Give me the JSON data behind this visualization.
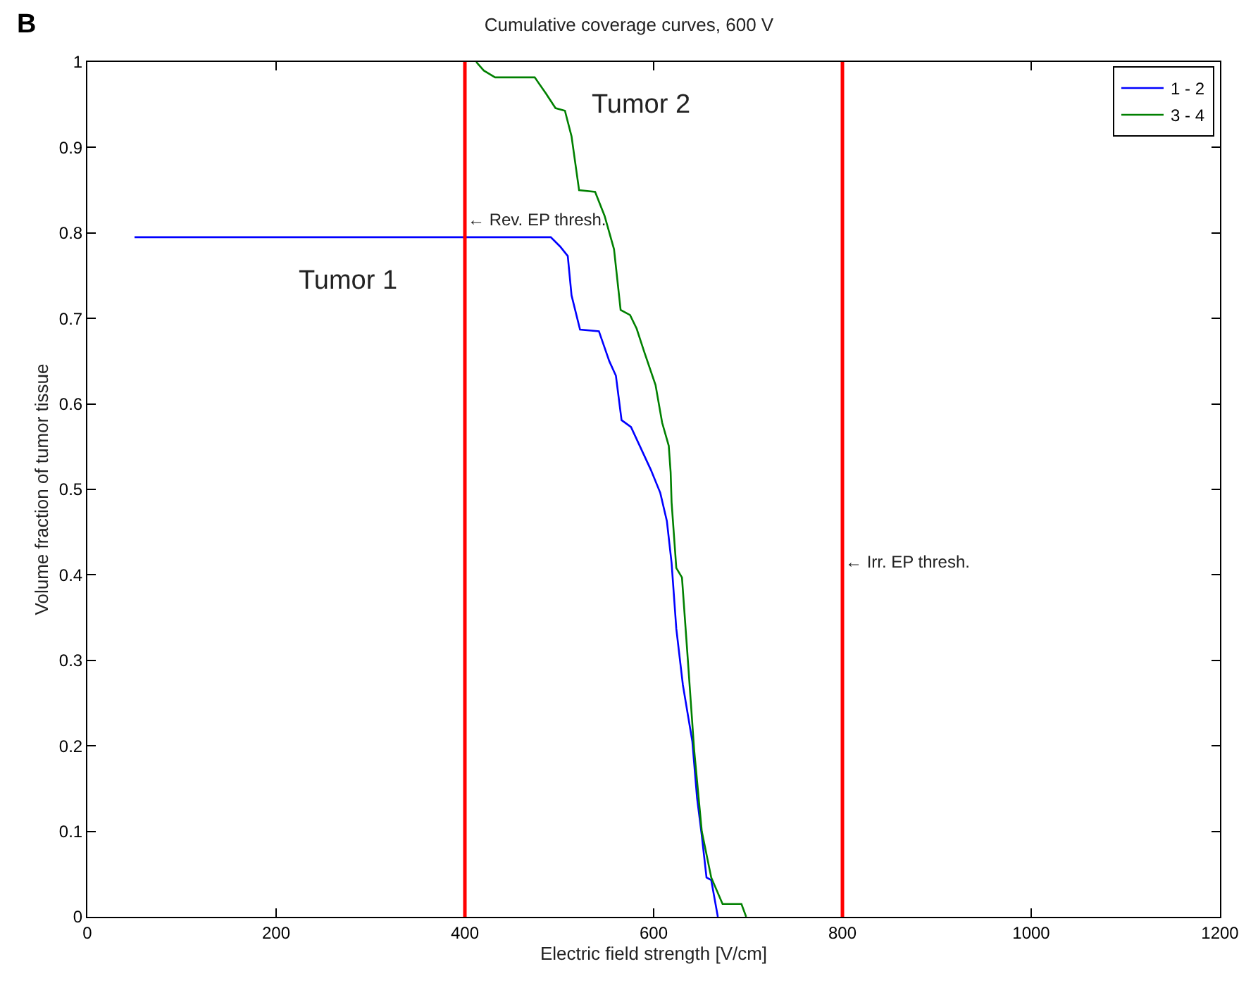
{
  "chart_data": {
    "type": "line",
    "title": "Cumulative coverage curves, 600 V",
    "xlabel": "Electric field strength [V/cm]",
    "ylabel": "Volume fraction of tumor tissue",
    "series": [
      {
        "name": "1 - 2",
        "color": "#0000ff",
        "x": [
          50,
          491,
          501,
          509,
          513,
          522,
          542,
          553,
          560,
          566,
          576,
          597,
          607,
          614,
          619,
          624,
          631,
          641,
          646,
          651,
          656,
          661,
          668
        ],
        "values": [
          0.795,
          0.795,
          0.784,
          0.773,
          0.727,
          0.687,
          0.685,
          0.65,
          0.633,
          0.581,
          0.573,
          0.523,
          0.496,
          0.463,
          0.414,
          0.337,
          0.271,
          0.205,
          0.139,
          0.095,
          0.046,
          0.043,
          0
        ]
      },
      {
        "name": "3 - 4",
        "color": "#008000",
        "x": [
          412,
          420,
          432,
          474,
          486,
          496,
          506,
          513,
          521,
          538,
          548,
          558,
          565,
          575,
          582,
          590,
          602,
          609,
          616,
          618,
          619,
          624,
          630,
          636,
          643,
          651,
          661,
          673,
          693,
          698
        ],
        "values": [
          1.0,
          0.99,
          0.982,
          0.982,
          0.963,
          0.946,
          0.943,
          0.913,
          0.85,
          0.848,
          0.82,
          0.781,
          0.71,
          0.704,
          0.688,
          0.661,
          0.622,
          0.578,
          0.551,
          0.52,
          0.485,
          0.408,
          0.397,
          0.304,
          0.194,
          0.1,
          0.046,
          0.015,
          0.015,
          0
        ]
      }
    ],
    "xlim": [
      0,
      1200
    ],
    "xticks": [
      0,
      200,
      400,
      600,
      800,
      1000,
      1200
    ],
    "ylim": [
      0,
      1
    ],
    "yticks": [
      0,
      0.1,
      0.2,
      0.3,
      0.4,
      0.5,
      0.6,
      0.7,
      0.8,
      0.9,
      1
    ],
    "ref_lines": [
      {
        "axis": "x",
        "value": 400,
        "color": "#ff0000"
      },
      {
        "axis": "x",
        "value": 800,
        "color": "#ff0000"
      }
    ],
    "annotations": [
      "B",
      "Tumor 1",
      "Tumor 2",
      {
        "text": "← Rev. EP thresh.",
        "x": 400,
        "y": 0.8
      },
      {
        "text": "← Irr. EP thresh.",
        "x": 800,
        "y": 0.4
      }
    ],
    "legend": "top right",
    "marker": "none",
    "line_style": "solid"
  }
}
